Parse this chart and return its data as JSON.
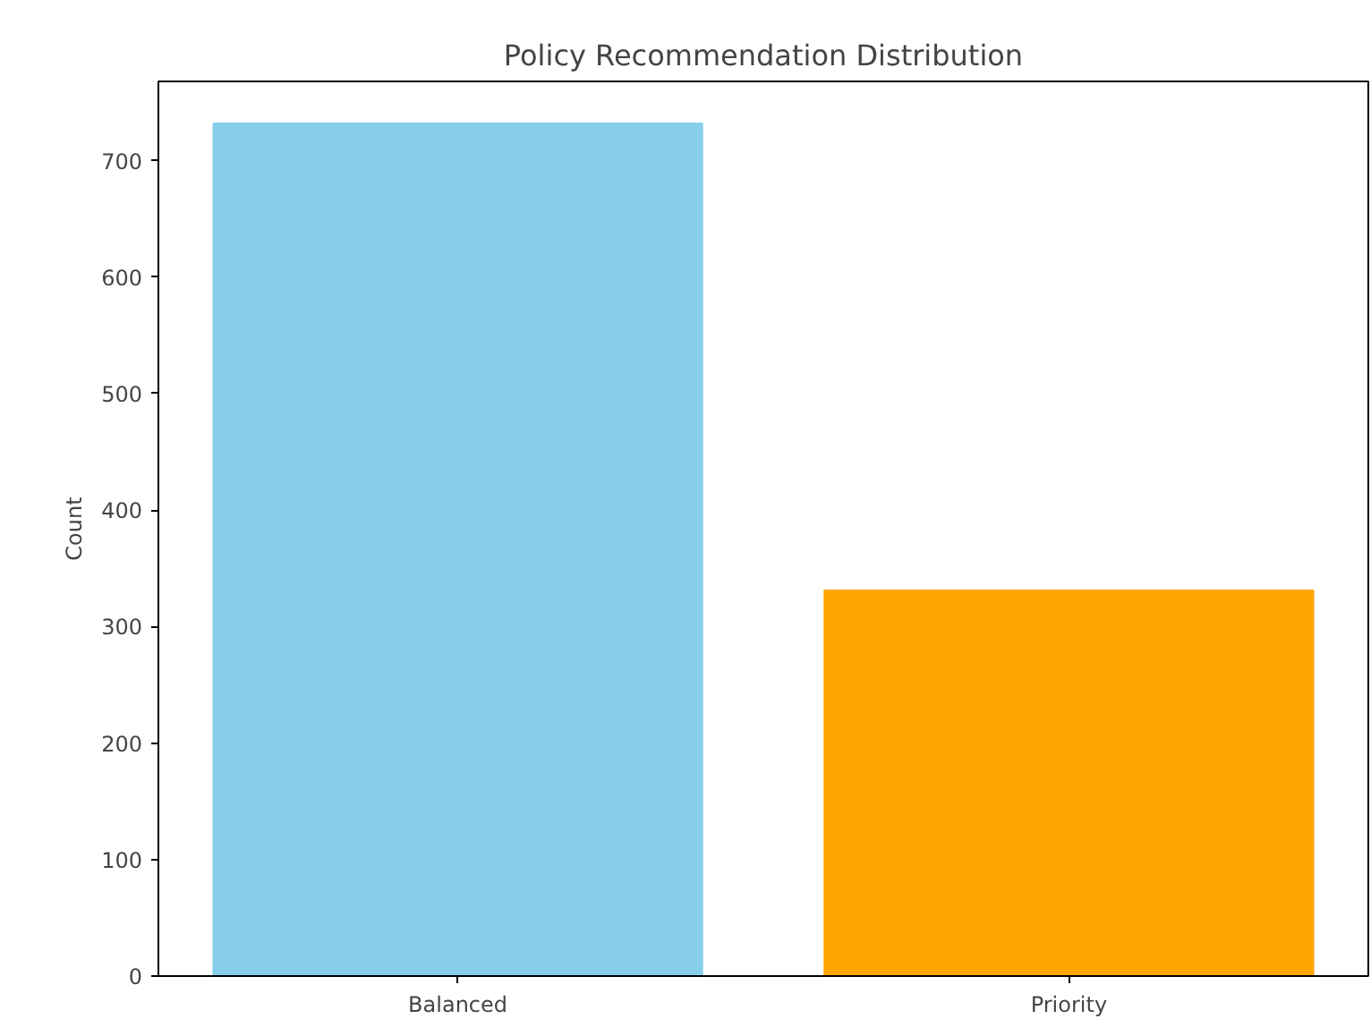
{
  "chart_data": {
    "type": "bar",
    "title": "Policy Recommendation Distribution",
    "ylabel": "Count",
    "categories": [
      "Balanced",
      "Priority"
    ],
    "values": [
      732,
      331
    ],
    "colors": [
      "#87ceeb",
      "#ffa500"
    ],
    "ylim": [
      0,
      768
    ],
    "yticks": [
      0,
      100,
      200,
      300,
      400,
      500,
      600,
      700
    ],
    "grid": false
  }
}
